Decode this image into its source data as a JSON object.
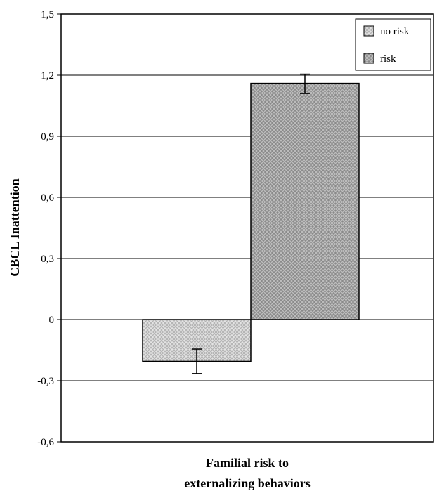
{
  "chart_data": {
    "type": "bar",
    "title": "",
    "ylabel": "CBCL Inattention",
    "xlabel_lines": [
      "Familial risk to",
      "externalizing behaviors"
    ],
    "ylim": [
      -0.6,
      1.5
    ],
    "yticks": [
      1.5,
      1.2,
      0.9,
      0.6,
      0.3,
      0,
      -0.3,
      -0.6
    ],
    "ytick_labels": [
      "1,5",
      "1,2",
      "0,9",
      "0,6",
      "0,3",
      "0",
      "-0,3",
      "-0,6"
    ],
    "grid": true,
    "legend_position": "top-right",
    "series": [
      {
        "name": "no risk",
        "value": -0.205,
        "error_low": -0.265,
        "error_high": -0.145,
        "color": "#e4e4e4",
        "pattern_color": "#b2b2b2"
      },
      {
        "name": "risk",
        "value": 1.16,
        "error_low": 1.11,
        "error_high": 1.205,
        "color": "#8a8a8a",
        "pattern_color": "#c0c0c0"
      }
    ]
  }
}
